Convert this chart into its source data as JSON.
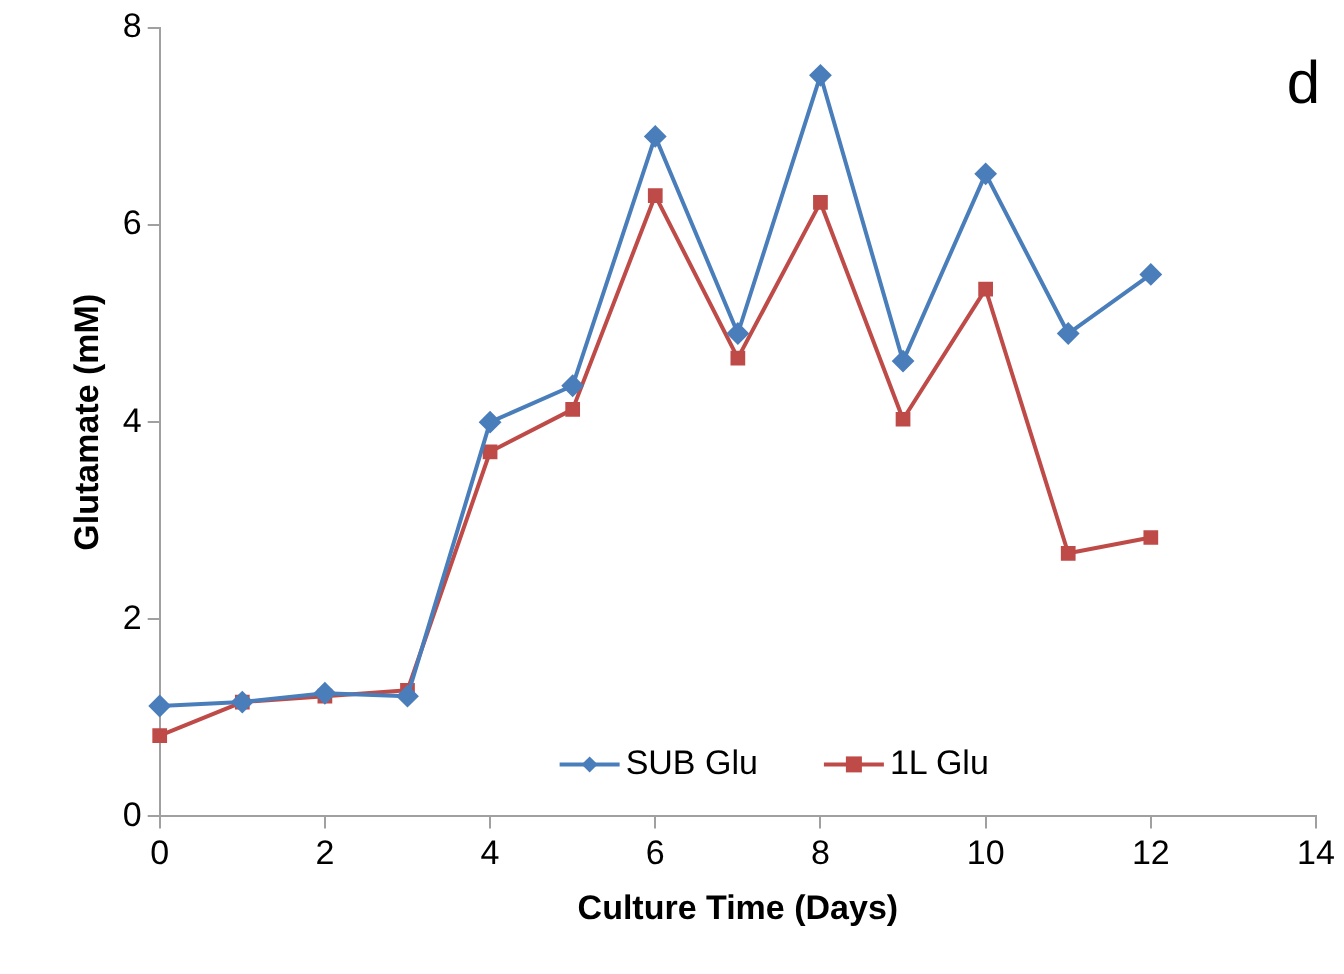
{
  "chart_data": {
    "type": "line",
    "xlabel": "Culture Time (Days)",
    "ylabel": "Glutamate (mM)",
    "x": [
      0,
      1,
      2,
      3,
      4,
      5,
      6,
      7,
      8,
      9,
      10,
      11,
      12
    ],
    "series": [
      {
        "name": "SUB Glu",
        "color": "#4a7ebb",
        "marker": "diamond",
        "values": [
          1.12,
          1.16,
          1.25,
          1.22,
          4.0,
          4.37,
          6.9,
          4.9,
          7.52,
          4.62,
          6.52,
          4.9,
          5.5
        ]
      },
      {
        "name": "1L Glu",
        "color": "#be4b48",
        "marker": "square",
        "values": [
          0.82,
          1.16,
          1.22,
          1.28,
          3.7,
          4.13,
          6.3,
          4.65,
          6.23,
          4.03,
          5.35,
          2.67,
          2.83
        ]
      }
    ],
    "xlim": [
      0,
      14
    ],
    "xticks": [
      0,
      2,
      4,
      6,
      8,
      10,
      12,
      14
    ],
    "ylim": [
      0,
      8
    ],
    "yticks": [
      0,
      2,
      4,
      6,
      8
    ],
    "grid": false,
    "legend": "bottom",
    "line_style": "solid",
    "annotations": [
      "d"
    ]
  }
}
